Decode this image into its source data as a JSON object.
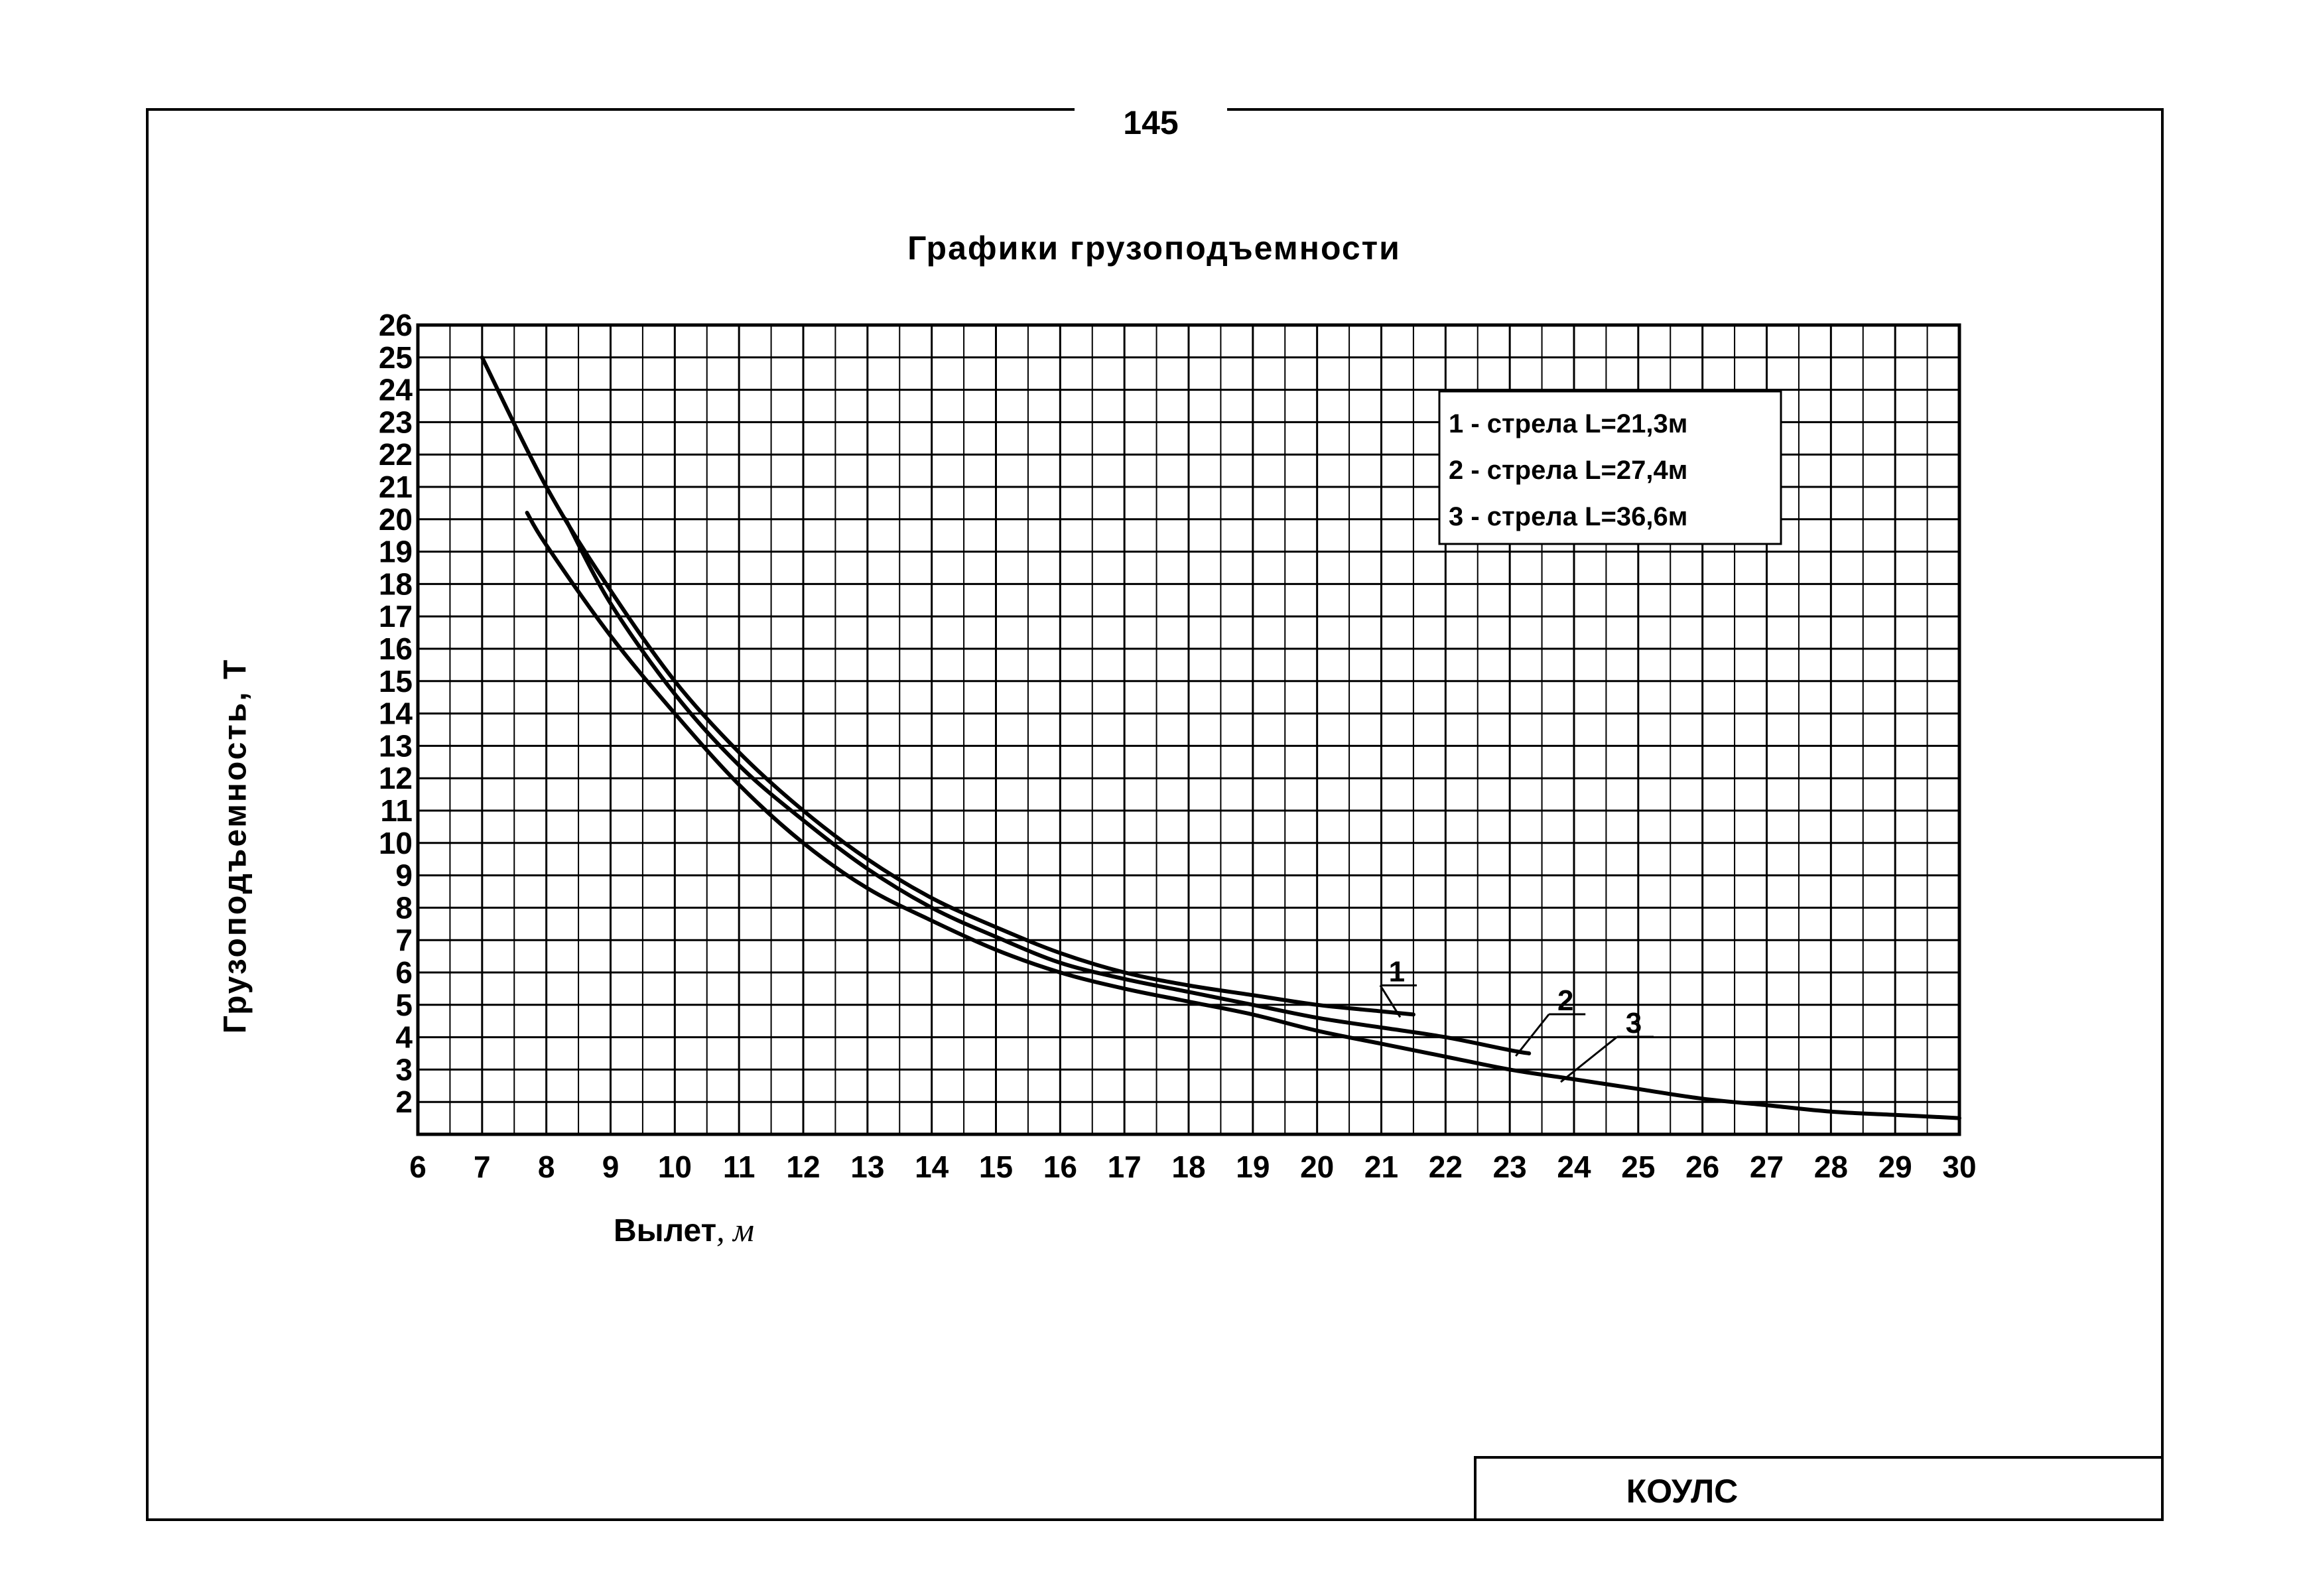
{
  "page": {
    "number": "145",
    "stamp": "КОУЛС"
  },
  "chart_data": {
    "type": "line",
    "title": "Графики грузоподъемности",
    "xlabel": "Вылет",
    "xlabel_unit": ", м",
    "ylabel": "Грузоподъемность, Т",
    "xlim": [
      6,
      30
    ],
    "ylim": [
      1,
      26
    ],
    "x_ticks": [
      "6",
      "7",
      "8",
      "9",
      "10",
      "11",
      "12",
      "13",
      "14",
      "15",
      "16",
      "17",
      "18",
      "19",
      "20",
      "21",
      "22",
      "23",
      "24",
      "25",
      "26",
      "27",
      "28",
      "29",
      "30"
    ],
    "y_ticks": [
      "2",
      "3",
      "4",
      "5",
      "6",
      "7",
      "8",
      "9",
      "10",
      "11",
      "12",
      "13",
      "14",
      "15",
      "16",
      "17",
      "18",
      "19",
      "20",
      "21",
      "22",
      "23",
      "24",
      "25",
      "26"
    ],
    "grid": true,
    "legend_position": "top-right",
    "legend": [
      "1 - стрела L=21,3м",
      "2 - стрела L=27,4м",
      "3 - стрела L=36,6м"
    ],
    "series": [
      {
        "name": "1",
        "color": "#000000",
        "points": [
          [
            7.0,
            25.0
          ],
          [
            8.0,
            21.0
          ],
          [
            9.0,
            17.8
          ],
          [
            10.0,
            15.0
          ],
          [
            11.0,
            12.8
          ],
          [
            12.0,
            11.0
          ],
          [
            13.0,
            9.5
          ],
          [
            14.0,
            8.3
          ],
          [
            15.0,
            7.4
          ],
          [
            16.0,
            6.6
          ],
          [
            17.0,
            6.0
          ],
          [
            18.0,
            5.6
          ],
          [
            19.0,
            5.3
          ],
          [
            20.0,
            5.0
          ],
          [
            21.0,
            4.8
          ],
          [
            21.5,
            4.7
          ]
        ]
      },
      {
        "name": "2",
        "color": "#000000",
        "points": [
          [
            8.3,
            20.0
          ],
          [
            9.0,
            17.4
          ],
          [
            10.0,
            14.6
          ],
          [
            11.0,
            12.4
          ],
          [
            12.0,
            10.7
          ],
          [
            13.0,
            9.2
          ],
          [
            14.0,
            8.0
          ],
          [
            15.0,
            7.1
          ],
          [
            16.0,
            6.3
          ],
          [
            17.0,
            5.8
          ],
          [
            18.0,
            5.4
          ],
          [
            19.0,
            5.0
          ],
          [
            20.0,
            4.6
          ],
          [
            21.0,
            4.3
          ],
          [
            22.0,
            4.0
          ],
          [
            23.0,
            3.6
          ],
          [
            23.3,
            3.5
          ]
        ]
      },
      {
        "name": "3",
        "color": "#000000",
        "points": [
          [
            7.7,
            20.2
          ],
          [
            8.0,
            19.2
          ],
          [
            9.0,
            16.4
          ],
          [
            10.0,
            14.0
          ],
          [
            11.0,
            11.8
          ],
          [
            12.0,
            10.0
          ],
          [
            13.0,
            8.6
          ],
          [
            14.0,
            7.6
          ],
          [
            15.0,
            6.7
          ],
          [
            16.0,
            6.0
          ],
          [
            17.0,
            5.5
          ],
          [
            18.0,
            5.1
          ],
          [
            19.0,
            4.7
          ],
          [
            20.0,
            4.2
          ],
          [
            21.0,
            3.8
          ],
          [
            22.0,
            3.4
          ],
          [
            23.0,
            3.0
          ],
          [
            24.0,
            2.7
          ],
          [
            25.0,
            2.4
          ],
          [
            26.0,
            2.1
          ],
          [
            27.0,
            1.9
          ],
          [
            28.0,
            1.7
          ],
          [
            29.0,
            1.6
          ],
          [
            30.0,
            1.5
          ]
        ]
      }
    ]
  }
}
